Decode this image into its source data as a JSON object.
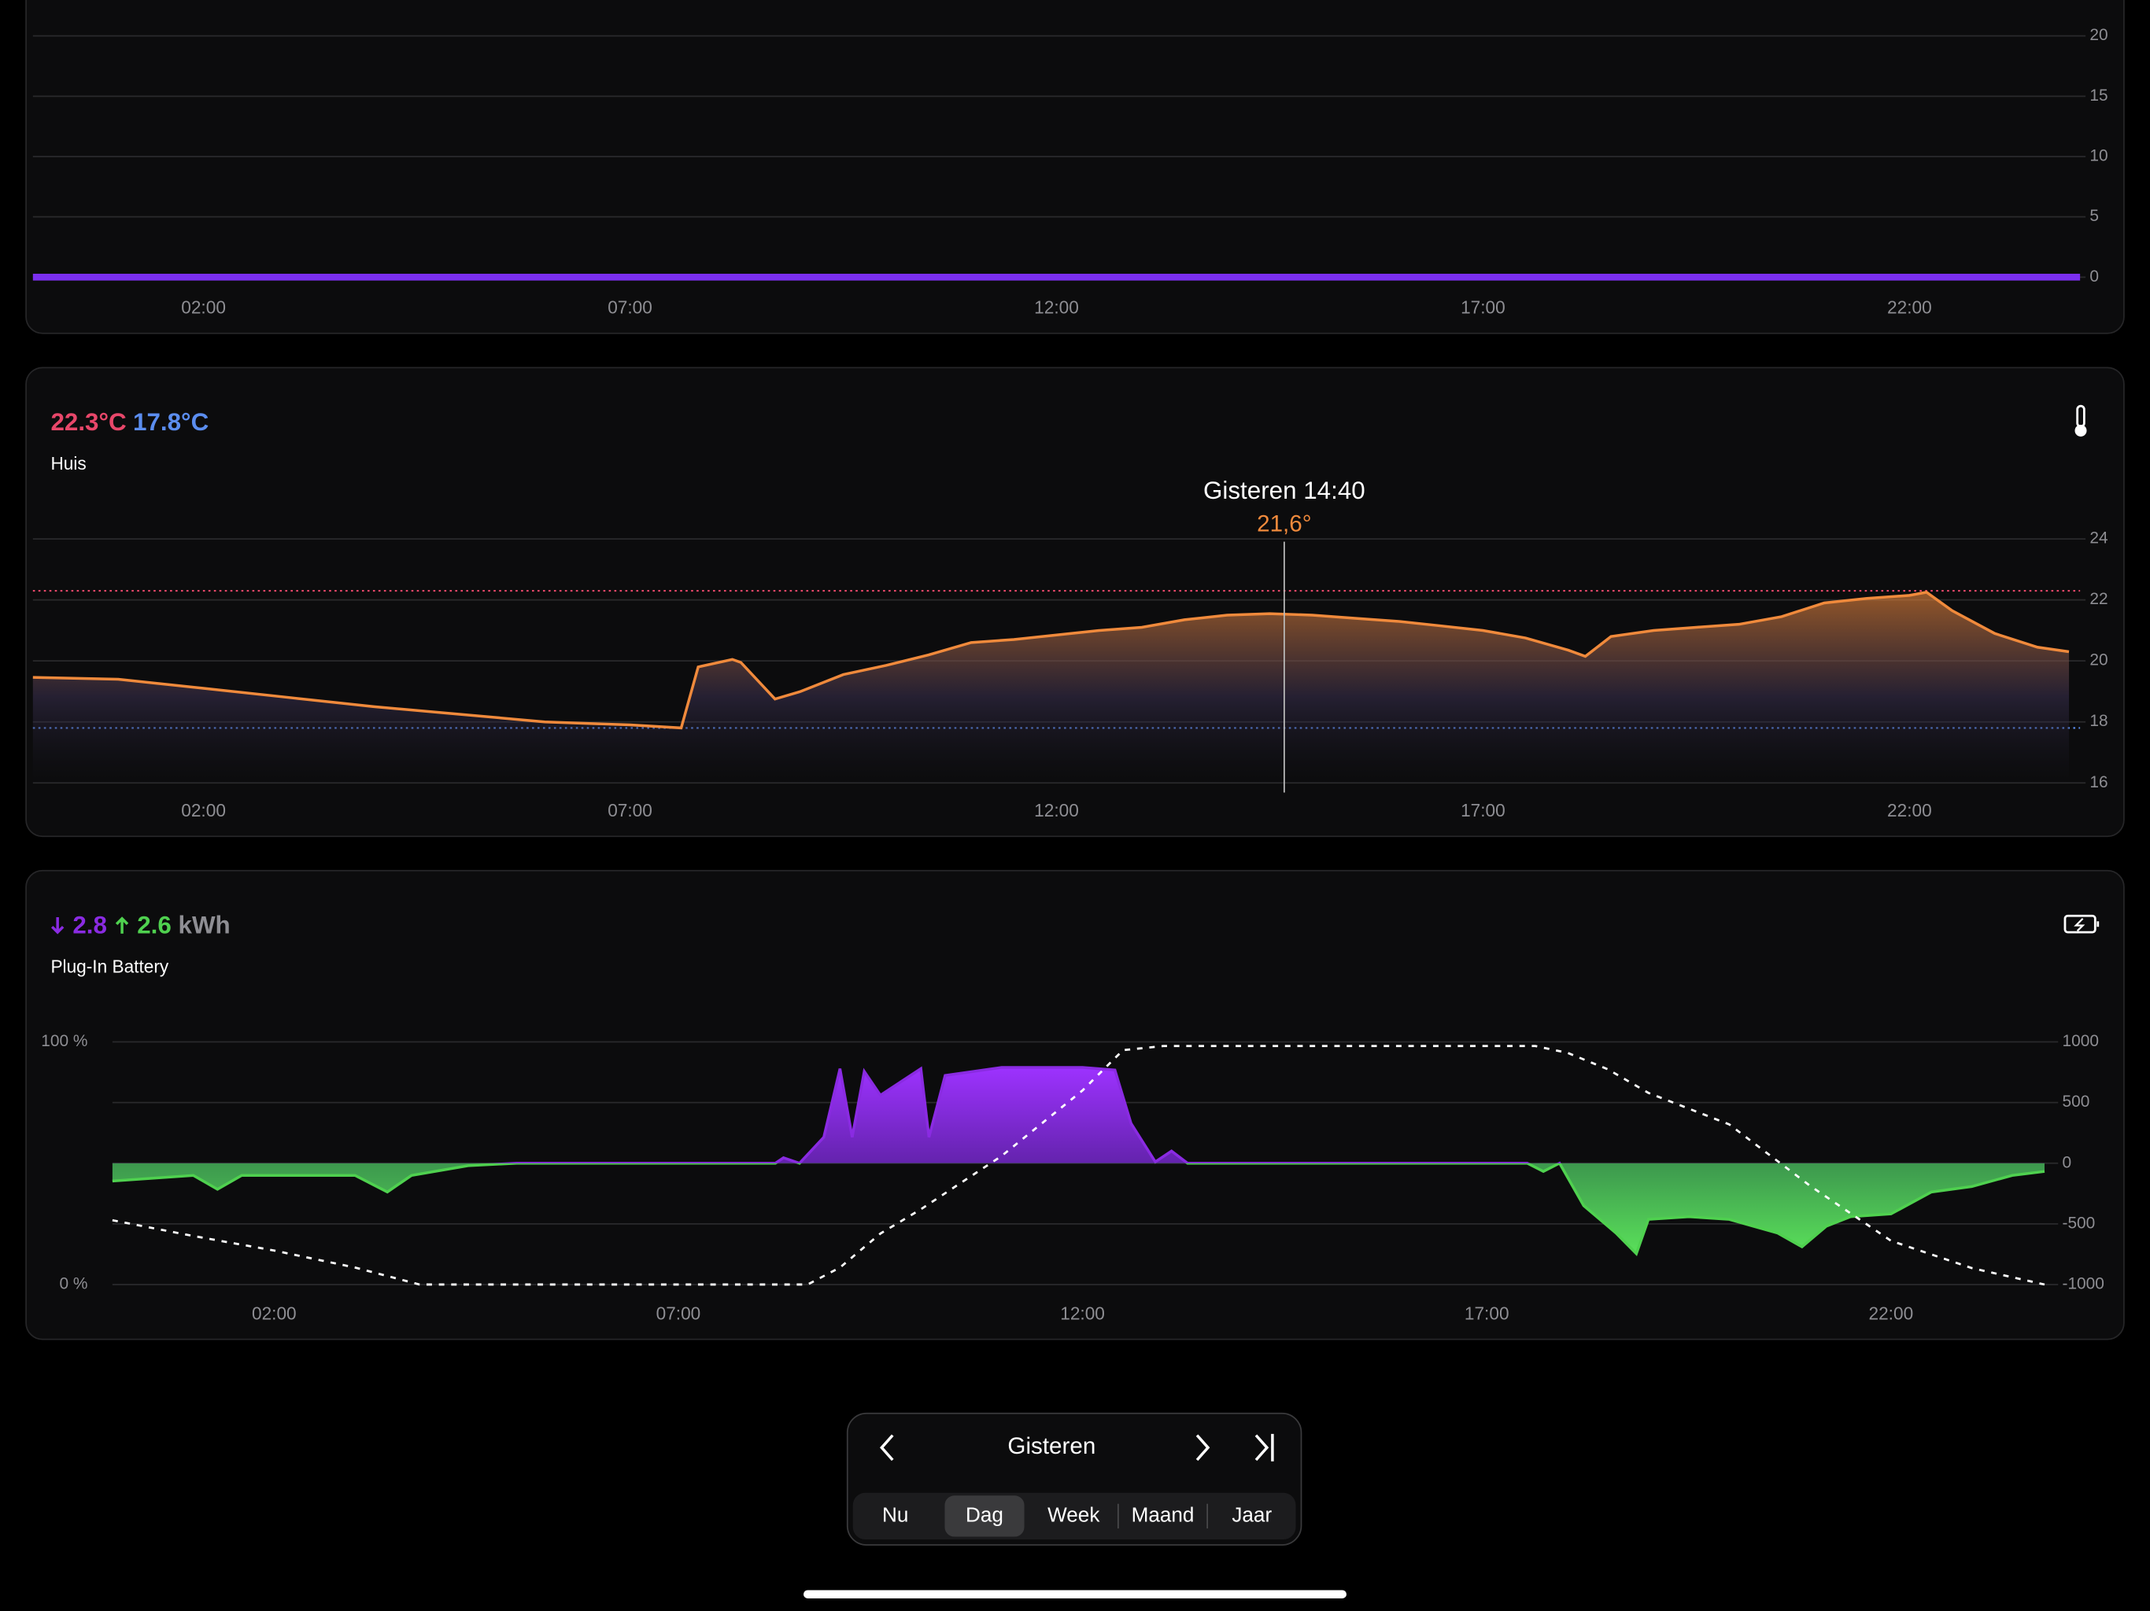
{
  "chart_data": [
    {
      "type": "line",
      "xlim": [
        0,
        24
      ],
      "xticks": [
        {
          "value": 2,
          "label": "02:00"
        },
        {
          "value": 7,
          "label": "07:00"
        },
        {
          "value": 12,
          "label": "12:00"
        },
        {
          "value": 17,
          "label": "17:00"
        },
        {
          "value": 22,
          "label": "22:00"
        }
      ],
      "ylim": [
        0,
        20
      ],
      "yticks": [
        0,
        5,
        10,
        15,
        20
      ],
      "grid": true,
      "series": [
        {
          "color": "#7b2ff0",
          "x": [
            0,
            24
          ],
          "values": [
            0,
            0
          ]
        }
      ]
    },
    {
      "type": "area",
      "max": {
        "value": 22.3,
        "label": "22.3°C"
      },
      "min": {
        "value": 17.8,
        "label": "17.8°C"
      },
      "subtitle": "Huis",
      "cursor": {
        "x": 14.67,
        "label": "Gisteren 14:40",
        "value": 21.6,
        "value_label": "21,6°"
      },
      "xlim": [
        0,
        24
      ],
      "xticks": [
        {
          "value": 2,
          "label": "02:00"
        },
        {
          "value": 7,
          "label": "07:00"
        },
        {
          "value": 12,
          "label": "12:00"
        },
        {
          "value": 17,
          "label": "17:00"
        },
        {
          "value": 22,
          "label": "22:00"
        }
      ],
      "ylim": [
        16,
        24
      ],
      "yticks": [
        16,
        18,
        20,
        22,
        24
      ],
      "grid": true,
      "series": [
        {
          "color": "#f08a3c",
          "x": [
            0,
            1,
            2,
            3,
            4,
            5,
            6,
            7,
            7.6,
            7.8,
            8.2,
            8.3,
            8.7,
            9,
            9.5,
            10,
            10.5,
            11,
            11.5,
            12,
            12.5,
            13,
            13.5,
            14,
            14.5,
            15,
            15.5,
            16,
            16.5,
            17,
            17.5,
            18,
            18.2,
            18.5,
            19,
            19.5,
            20,
            20.5,
            21,
            21.5,
            22,
            22.2,
            22.5,
            23,
            23.5,
            23.87
          ],
          "values": [
            19.46,
            19.4,
            19.1,
            18.8,
            18.5,
            18.25,
            18.0,
            17.9,
            17.8,
            19.8,
            20.05,
            19.95,
            18.75,
            19.0,
            19.55,
            19.85,
            20.2,
            20.6,
            20.7,
            20.85,
            21.0,
            21.1,
            21.35,
            21.5,
            21.55,
            21.5,
            21.4,
            21.3,
            21.15,
            21.0,
            20.75,
            20.35,
            20.15,
            20.8,
            21.0,
            21.1,
            21.2,
            21.45,
            21.9,
            22.05,
            22.15,
            22.25,
            21.65,
            20.9,
            20.45,
            20.3
          ]
        }
      ]
    },
    {
      "type": "area",
      "import": 2.8,
      "export": 2.6,
      "unit": "kWh",
      "subtitle": "Plug-In Battery",
      "xlim": [
        0,
        24
      ],
      "xticks": [
        {
          "value": 2,
          "label": "02:00"
        },
        {
          "value": 7,
          "label": "07:00"
        },
        {
          "value": 12,
          "label": "12:00"
        },
        {
          "value": 17,
          "label": "17:00"
        },
        {
          "value": 22,
          "label": "22:00"
        }
      ],
      "ylim": [
        0,
        100
      ],
      "yticks": [
        {
          "value": 0,
          "label": "0 %"
        },
        {
          "value": 100,
          "label": "100 %"
        }
      ],
      "y2lim": [
        -1000,
        1000
      ],
      "y2ticks": [
        -1000,
        -500,
        0,
        500,
        1000
      ],
      "grid": true,
      "series": [
        {
          "color": "#8a2be2",
          "negative_color": "#4fd14f",
          "axis": "y2",
          "x": [
            0,
            1,
            1.3,
            1.6,
            2,
            3,
            3.4,
            3.7,
            4.4,
            5,
            8.2,
            8.3,
            8.5,
            8.8,
            9,
            9.15,
            9.3,
            9.5,
            10,
            10.1,
            10.3,
            11,
            12,
            12.4,
            12.6,
            12.9,
            13.1,
            13.3,
            17.5,
            17.7,
            17.9,
            18.2,
            18.6,
            18.85,
            19,
            19.5,
            20,
            20.3,
            20.6,
            20.9,
            21.2,
            21.5,
            22,
            22.5,
            23,
            23.5,
            23.9
          ],
          "values": [
            -147,
            -100,
            -215,
            -100,
            -100,
            -100,
            -237,
            -100,
            -20,
            0,
            0,
            45,
            0,
            215,
            780,
            215,
            757,
            560,
            780,
            215,
            723,
            790,
            790,
            768,
            328,
            11,
            100,
            0,
            0,
            -68,
            0,
            -350,
            -576,
            -746,
            -463,
            -441,
            -463,
            -520,
            -576,
            -689,
            -520,
            -441,
            -418,
            -237,
            -192,
            -100,
            -68
          ]
        },
        {
          "color": "#ffffff",
          "dash": true,
          "x": [
            0,
            1,
            2,
            3,
            3.8,
            8.6,
            9,
            9.5,
            10,
            11,
            12,
            12.5,
            13,
            17.6,
            18,
            18.5,
            19,
            20,
            21,
            22,
            23,
            23.9
          ],
          "values": [
            26.5,
            20,
            14,
            7,
            0,
            0,
            7,
            21,
            31,
            53,
            80,
            96.6,
            98.3,
            98.3,
            95.5,
            88.7,
            79,
            66,
            40.7,
            18,
            6.8,
            0
          ]
        }
      ]
    }
  ],
  "navigation": {
    "period": "Gisteren",
    "tabs": [
      "Nu",
      "Dag",
      "Week",
      "Maand",
      "Jaar"
    ],
    "selected": 1
  }
}
